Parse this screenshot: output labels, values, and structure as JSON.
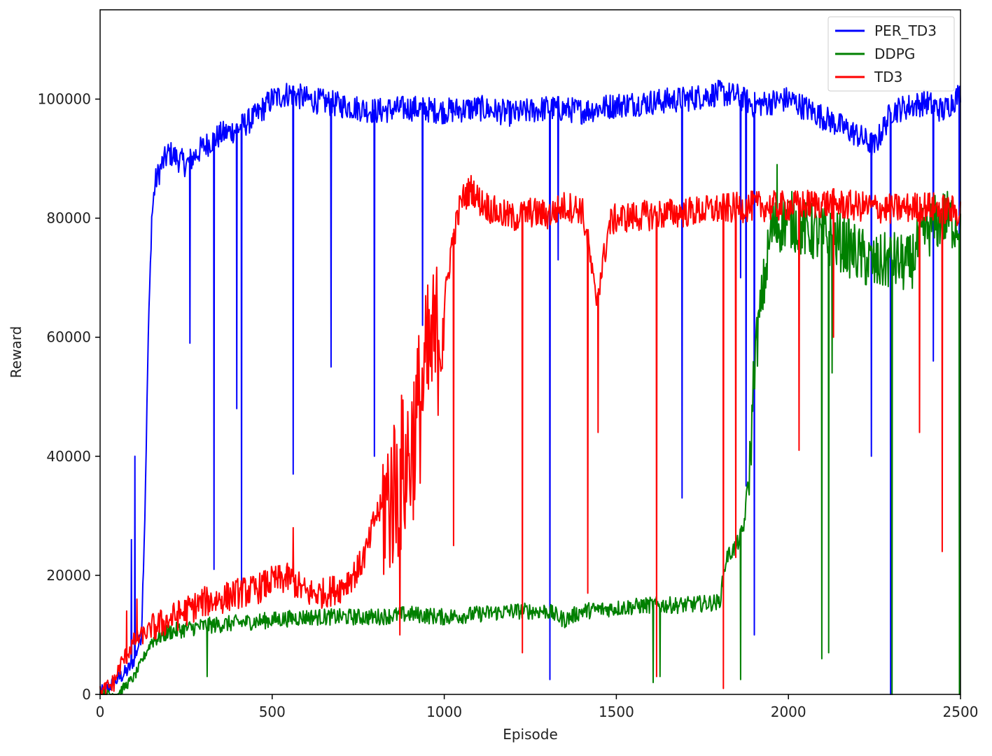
{
  "chart_data": {
    "type": "line",
    "title": "",
    "xlabel": "Episode",
    "ylabel": "Reward",
    "xlim": [
      0,
      2500
    ],
    "ylim": [
      0,
      115000
    ],
    "x_ticks": [
      0,
      500,
      1000,
      1500,
      2000,
      2500
    ],
    "y_ticks": [
      0,
      20000,
      40000,
      60000,
      80000,
      100000
    ],
    "grid": false,
    "legend_position": "top-right",
    "series": [
      {
        "name": "PER_TD3",
        "color": "#0000ff",
        "x": [
          0,
          40,
          80,
          100,
          120,
          130,
          140,
          150,
          160,
          180,
          200,
          250,
          300,
          350,
          400,
          450,
          500,
          550,
          600,
          700,
          800,
          900,
          1000,
          1100,
          1200,
          1300,
          1400,
          1500,
          1600,
          1700,
          1800,
          1850,
          1900,
          2000,
          2100,
          2200,
          2250,
          2300,
          2400,
          2450,
          2500
        ],
        "values": [
          0,
          2000,
          4000,
          6000,
          10000,
          30000,
          60000,
          80000,
          86000,
          89000,
          91000,
          89000,
          92000,
          94000,
          95000,
          97000,
          100000,
          101000,
          100000,
          99000,
          98000,
          98500,
          98000,
          98500,
          97500,
          98500,
          98000,
          99000,
          99500,
          100000,
          101000,
          100500,
          99000,
          100000,
          97000,
          94000,
          92000,
          98000,
          99500,
          98000,
          101000
        ],
        "spikes": [
          {
            "x": 90,
            "y": 26000
          },
          {
            "x": 100,
            "y": 40000
          },
          {
            "x": 260,
            "y": 59000
          },
          {
            "x": 330,
            "y": 21000
          },
          {
            "x": 395,
            "y": 48000
          },
          {
            "x": 410,
            "y": 18000
          },
          {
            "x": 560,
            "y": 37000
          },
          {
            "x": 670,
            "y": 55000
          },
          {
            "x": 795,
            "y": 40000
          },
          {
            "x": 935,
            "y": 62000
          },
          {
            "x": 1305,
            "y": 2500
          },
          {
            "x": 1330,
            "y": 73000
          },
          {
            "x": 1690,
            "y": 33000
          },
          {
            "x": 1860,
            "y": 70000
          },
          {
            "x": 1875,
            "y": 35000
          },
          {
            "x": 1900,
            "y": 10000
          },
          {
            "x": 2240,
            "y": 40000
          },
          {
            "x": 2295,
            "y": 0
          },
          {
            "x": 2420,
            "y": 56000
          },
          {
            "x": 2495,
            "y": 20000
          }
        ]
      },
      {
        "name": "DDPG",
        "color": "#008000",
        "x": [
          0,
          50,
          100,
          150,
          200,
          300,
          400,
          500,
          600,
          700,
          800,
          900,
          1000,
          1100,
          1200,
          1300,
          1350,
          1400,
          1500,
          1600,
          1700,
          1800,
          1820,
          1850,
          1870,
          1890,
          1900,
          1920,
          1950,
          2000,
          2050,
          2100,
          2150,
          2200,
          2250,
          2300,
          2350,
          2400,
          2450,
          2500
        ],
        "values": [
          0,
          0,
          3000,
          9000,
          10500,
          11500,
          12000,
          12500,
          13000,
          13000,
          13000,
          13500,
          13000,
          13500,
          14000,
          14000,
          12500,
          14000,
          14500,
          15000,
          15000,
          15500,
          23000,
          25000,
          28000,
          40000,
          55000,
          65000,
          78000,
          80000,
          78000,
          77000,
          76000,
          74000,
          72000,
          73000,
          72000,
          78000,
          80000,
          79000
        ],
        "spikes": [
          {
            "x": 310,
            "y": 3000
          },
          {
            "x": 1605,
            "y": 2000
          },
          {
            "x": 1625,
            "y": 3000
          },
          {
            "x": 1860,
            "y": 2500
          },
          {
            "x": 1965,
            "y": 89000
          },
          {
            "x": 2095,
            "y": 6000
          },
          {
            "x": 2115,
            "y": 7000
          },
          {
            "x": 2125,
            "y": 54000
          },
          {
            "x": 2300,
            "y": 0
          },
          {
            "x": 2495,
            "y": 0
          }
        ]
      },
      {
        "name": "TD3",
        "color": "#ff0000",
        "x": [
          0,
          40,
          60,
          80,
          100,
          150,
          200,
          250,
          300,
          350,
          400,
          450,
          500,
          550,
          600,
          650,
          700,
          750,
          780,
          800,
          830,
          860,
          900,
          950,
          980,
          1000,
          1020,
          1050,
          1080,
          1100,
          1150,
          1200,
          1250,
          1300,
          1350,
          1400,
          1420,
          1440,
          1460,
          1480,
          1500,
          1600,
          1700,
          1800,
          1900,
          2000,
          2100,
          2200,
          2300,
          2400,
          2500
        ],
        "values": [
          0,
          2000,
          5000,
          7000,
          9000,
          11000,
          12500,
          14000,
          15500,
          16000,
          17000,
          17500,
          19000,
          19500,
          17000,
          17000,
          18000,
          21000,
          25000,
          30000,
          32000,
          35000,
          40000,
          55000,
          60000,
          65000,
          75000,
          83000,
          85000,
          83000,
          81000,
          80000,
          81000,
          80500,
          82000,
          81500,
          75000,
          66000,
          72000,
          79000,
          80000,
          80500,
          81000,
          81500,
          82000,
          82000,
          82500,
          82000,
          81500,
          82000,
          81000
        ],
        "spikes": [
          {
            "x": 75,
            "y": 14000
          },
          {
            "x": 105,
            "y": 16000
          },
          {
            "x": 560,
            "y": 28000
          },
          {
            "x": 870,
            "y": 10000
          },
          {
            "x": 1025,
            "y": 25000
          },
          {
            "x": 1225,
            "y": 7000
          },
          {
            "x": 1415,
            "y": 17000
          },
          {
            "x": 1445,
            "y": 44000
          },
          {
            "x": 1615,
            "y": 3000
          },
          {
            "x": 1810,
            "y": 1000
          },
          {
            "x": 1845,
            "y": 23000
          },
          {
            "x": 2030,
            "y": 41000
          },
          {
            "x": 2130,
            "y": 60000
          },
          {
            "x": 2380,
            "y": 44000
          },
          {
            "x": 2445,
            "y": 24000
          }
        ]
      }
    ]
  }
}
